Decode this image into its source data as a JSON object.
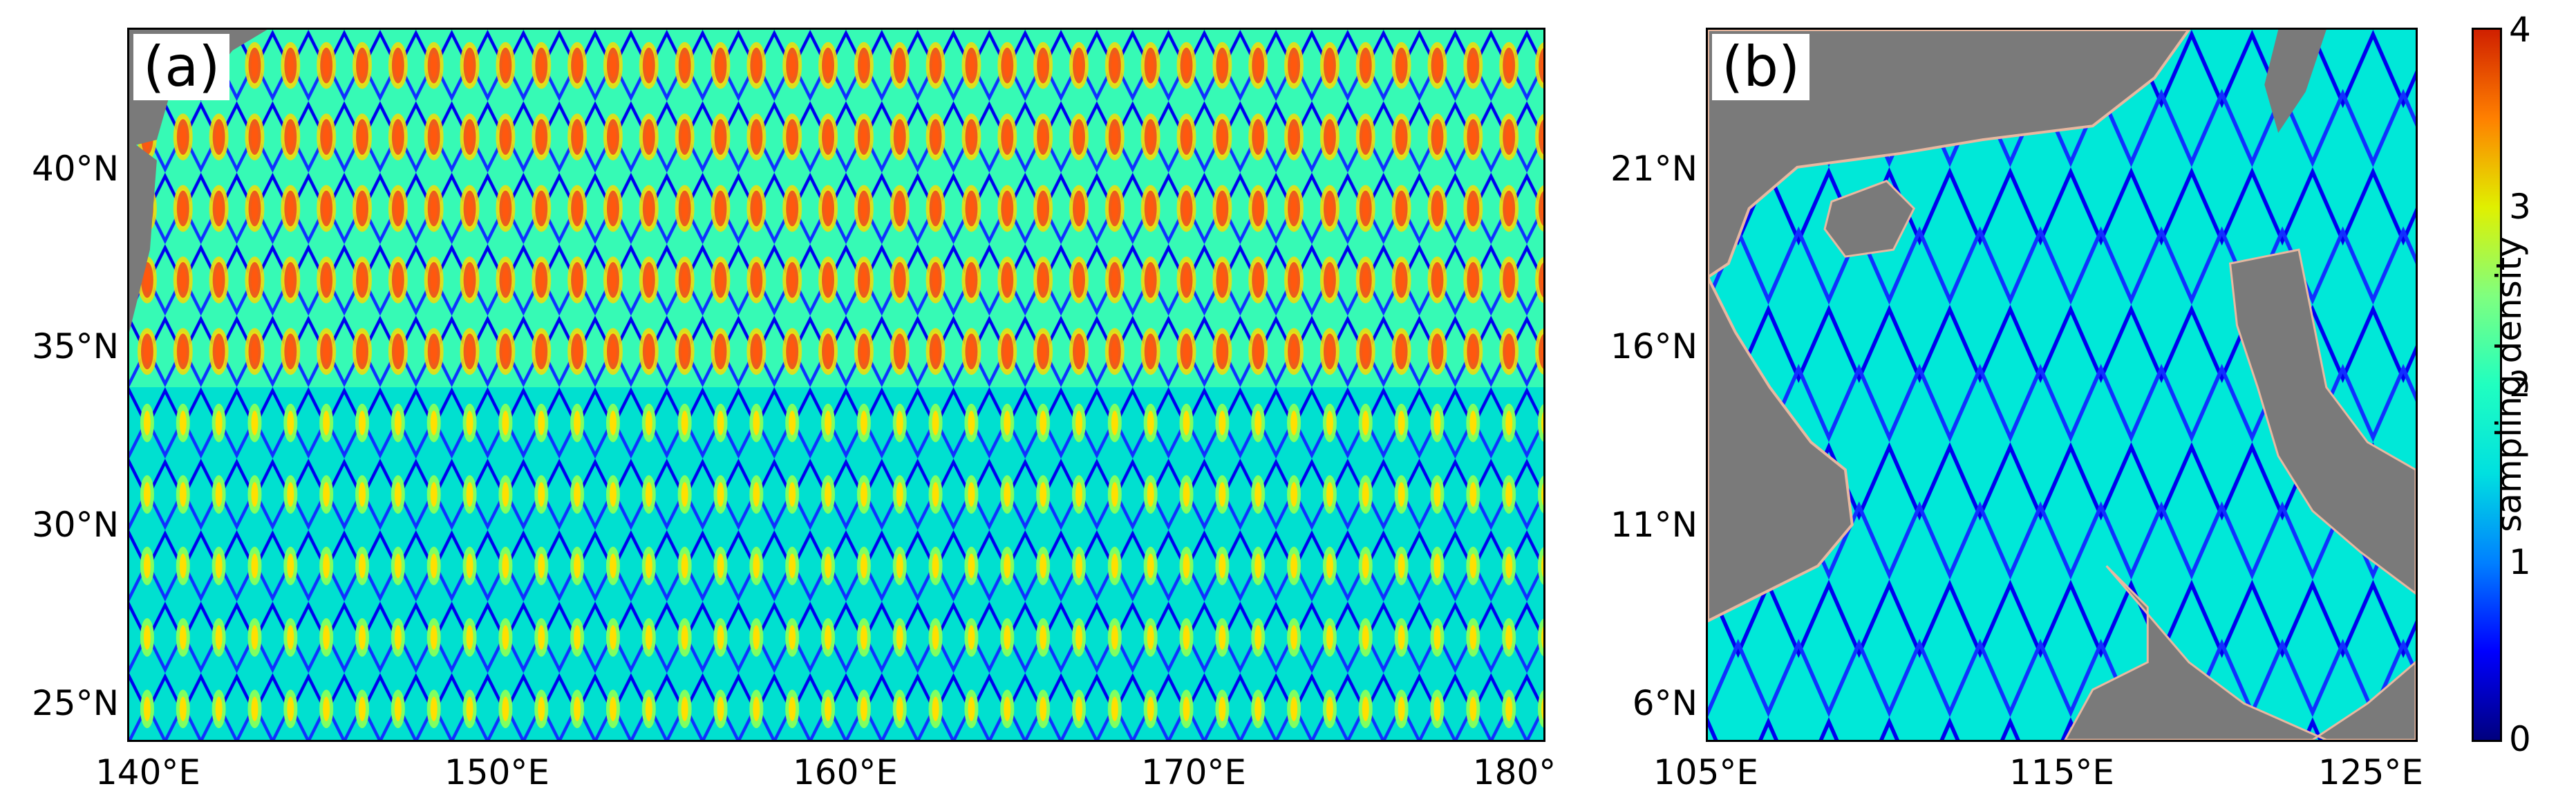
{
  "panels": [
    {
      "label": "(a)",
      "yticks": [
        "40°N",
        "35°N",
        "30°N",
        "25°N"
      ],
      "xticks": [
        "140°E",
        "150°E",
        "160°E",
        "170°E",
        "180°"
      ]
    },
    {
      "label": "(b)",
      "yticks": [
        "21°N",
        "16°N",
        "11°N",
        "6°N"
      ],
      "xticks": [
        "105°E",
        "115°E",
        "125°E"
      ]
    }
  ],
  "colorbar": {
    "label": "sampling density",
    "ticks": [
      "4",
      "3",
      "2",
      "1",
      "0"
    ],
    "range": [
      0,
      4
    ],
    "colormap": "jet"
  },
  "colors": {
    "land": "#7a7a7a",
    "coast": "#e8b8a0",
    "low": "#0000ff",
    "mid": "#00e8d8",
    "high": "#ff4000"
  }
}
